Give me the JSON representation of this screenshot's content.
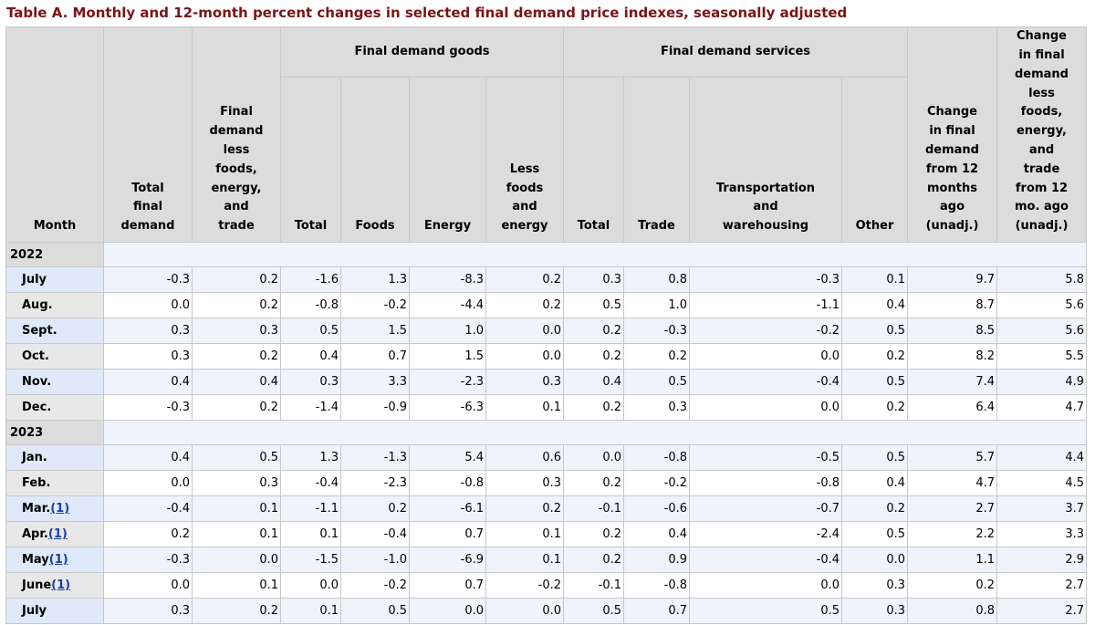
{
  "title": "Table A. Monthly and 12-month percent changes in selected final demand price indexes, seasonally adjusted",
  "groups": {
    "goods": "Final demand goods",
    "services": "Final demand services"
  },
  "headers": {
    "month": "Month",
    "total_fd": [
      "Total",
      "final",
      "demand"
    ],
    "fd_less": [
      "Final",
      "demand",
      "less",
      "foods,",
      "energy,",
      "and",
      "trade"
    ],
    "g_total": "Total",
    "g_foods": "Foods",
    "g_energy": "Energy",
    "g_less": [
      "Less",
      "foods",
      "and",
      "energy"
    ],
    "s_total": "Total",
    "s_trade": "Trade",
    "s_transport": [
      "Transportation",
      "and",
      "warehousing"
    ],
    "s_other": "Other",
    "chg12": [
      "Change",
      "in final",
      "demand",
      "from 12",
      "months",
      "ago",
      "(unadj.)"
    ],
    "chg12_core": [
      "Change",
      "in final",
      "demand",
      "less",
      "foods,",
      "energy,",
      "and",
      "trade",
      "from 12",
      "mo. ago",
      "(unadj.)"
    ]
  },
  "years": [
    "2022",
    "2023"
  ],
  "rows_2022": [
    {
      "month": "July",
      "fn": "",
      "v": [
        "-0.3",
        "0.2",
        "-1.6",
        "1.3",
        "-8.3",
        "0.2",
        "0.3",
        "0.8",
        "-0.3",
        "0.1",
        "9.7",
        "5.8"
      ]
    },
    {
      "month": "Aug.",
      "fn": "",
      "v": [
        "0.0",
        "0.2",
        "-0.8",
        "-0.2",
        "-4.4",
        "0.2",
        "0.5",
        "1.0",
        "-1.1",
        "0.4",
        "8.7",
        "5.6"
      ]
    },
    {
      "month": "Sept.",
      "fn": "",
      "v": [
        "0.3",
        "0.3",
        "0.5",
        "1.5",
        "1.0",
        "0.0",
        "0.2",
        "-0.3",
        "-0.2",
        "0.5",
        "8.5",
        "5.6"
      ]
    },
    {
      "month": "Oct.",
      "fn": "",
      "v": [
        "0.3",
        "0.2",
        "0.4",
        "0.7",
        "1.5",
        "0.0",
        "0.2",
        "0.2",
        "0.0",
        "0.2",
        "8.2",
        "5.5"
      ]
    },
    {
      "month": "Nov.",
      "fn": "",
      "v": [
        "0.4",
        "0.4",
        "0.3",
        "3.3",
        "-2.3",
        "0.3",
        "0.4",
        "0.5",
        "-0.4",
        "0.5",
        "7.4",
        "4.9"
      ]
    },
    {
      "month": "Dec.",
      "fn": "",
      "v": [
        "-0.3",
        "0.2",
        "-1.4",
        "-0.9",
        "-6.3",
        "0.1",
        "0.2",
        "0.3",
        "0.0",
        "0.2",
        "6.4",
        "4.7"
      ]
    }
  ],
  "rows_2023": [
    {
      "month": "Jan.",
      "fn": "",
      "v": [
        "0.4",
        "0.5",
        "1.3",
        "-1.3",
        "5.4",
        "0.6",
        "0.0",
        "-0.8",
        "-0.5",
        "0.5",
        "5.7",
        "4.4"
      ]
    },
    {
      "month": "Feb.",
      "fn": "",
      "v": [
        "0.0",
        "0.3",
        "-0.4",
        "-2.3",
        "-0.8",
        "0.3",
        "0.2",
        "-0.2",
        "-0.8",
        "0.4",
        "4.7",
        "4.5"
      ]
    },
    {
      "month": "Mar.",
      "fn": "(1)",
      "v": [
        "-0.4",
        "0.1",
        "-1.1",
        "0.2",
        "-6.1",
        "0.2",
        "-0.1",
        "-0.6",
        "-0.7",
        "0.2",
        "2.7",
        "3.7"
      ]
    },
    {
      "month": "Apr.",
      "fn": "(1)",
      "v": [
        "0.2",
        "0.1",
        "0.1",
        "-0.4",
        "0.7",
        "0.1",
        "0.2",
        "0.4",
        "-2.4",
        "0.5",
        "2.2",
        "3.3"
      ]
    },
    {
      "month": "May",
      "fn": "(1)",
      "v": [
        "-0.3",
        "0.0",
        "-1.5",
        "-1.0",
        "-6.9",
        "0.1",
        "0.2",
        "0.9",
        "-0.4",
        "0.0",
        "1.1",
        "2.9"
      ]
    },
    {
      "month": "June",
      "fn": "(1)",
      "v": [
        "0.0",
        "0.1",
        "0.0",
        "-0.2",
        "0.7",
        "-0.2",
        "-0.1",
        "-0.8",
        "0.0",
        "0.3",
        "0.2",
        "2.7"
      ]
    },
    {
      "month": "July",
      "fn": "",
      "v": [
        "0.3",
        "0.2",
        "0.1",
        "0.5",
        "0.0",
        "0.0",
        "0.5",
        "0.7",
        "0.5",
        "0.3",
        "0.8",
        "2.7"
      ]
    }
  ]
}
